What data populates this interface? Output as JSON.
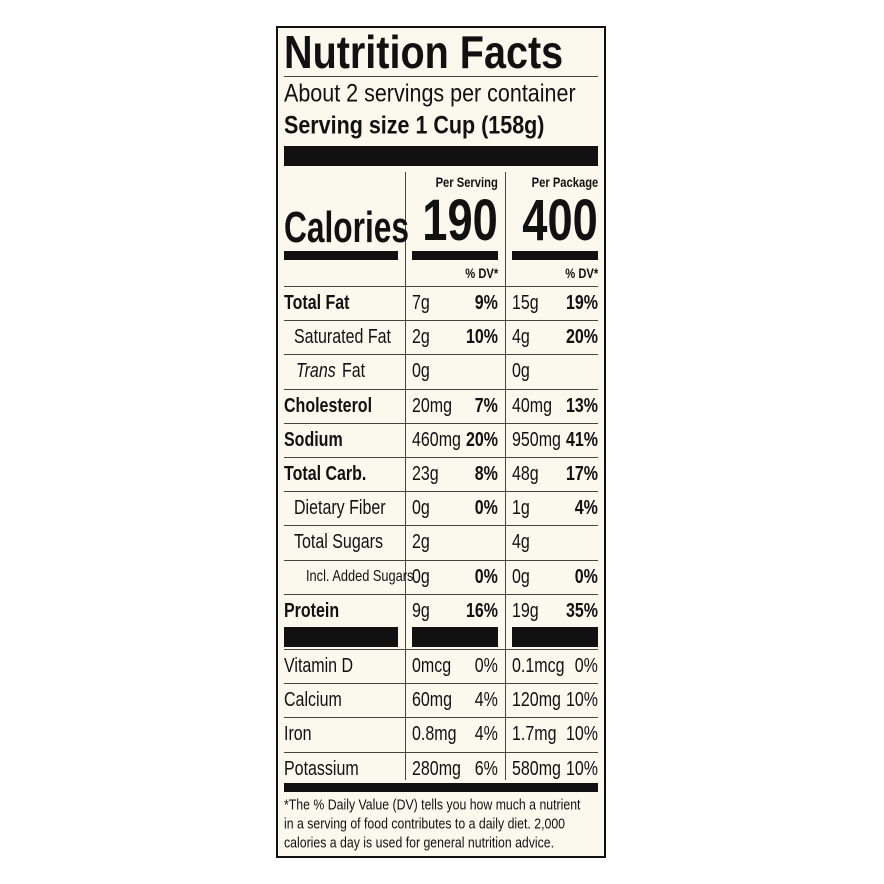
{
  "title": "Nutrition Facts",
  "servings": "About 2 servings per container",
  "serving_size": "Serving size 1 Cup (158g)",
  "columns": [
    "Per Serving",
    "Per Package"
  ],
  "calories": {
    "label": "Calories",
    "per_serving": "190",
    "per_package": "400"
  },
  "dv_header": [
    "% DV*",
    "% DV*"
  ],
  "rows": [
    {
      "name": "Total Fat",
      "serving_amount": "7g",
      "serving_dv": "9%",
      "package_amount": "15g",
      "package_dv": "19%"
    },
    {
      "name": "Saturated Fat",
      "serving_amount": "2g",
      "serving_dv": "10%",
      "package_amount": "4g",
      "package_dv": "20%"
    },
    {
      "name_prefix": "Trans",
      "name": "Fat",
      "serving_amount": "0g",
      "package_amount": "0g"
    },
    {
      "name": "Cholesterol",
      "serving_amount": "20mg",
      "serving_dv": "7%",
      "package_amount": "40mg",
      "package_dv": "13%"
    },
    {
      "name": "Sodium",
      "serving_amount": "460mg",
      "serving_dv": "20%",
      "package_amount": "950mg",
      "package_dv": "41%"
    },
    {
      "name": "Total Carb.",
      "serving_amount": "23g",
      "serving_dv": "8%",
      "package_amount": "48g",
      "package_dv": "17%"
    },
    {
      "name": "Dietary Fiber",
      "serving_amount": "0g",
      "serving_dv": "0%",
      "package_amount": "1g",
      "package_dv": "4%"
    },
    {
      "name": "Total Sugars",
      "serving_amount": "2g",
      "package_amount": "4g"
    },
    {
      "name": "Incl. Added Sugars",
      "serving_amount": "0g",
      "serving_dv": "0%",
      "package_amount": "0g",
      "package_dv": "0%"
    },
    {
      "name": "Protein",
      "serving_amount": "9g",
      "serving_dv": "16%",
      "package_amount": "19g",
      "package_dv": "35%"
    }
  ],
  "vitamins": [
    {
      "name": "Vitamin D",
      "serving_amount": "0mcg",
      "serving_dv": "0%",
      "package_amount": "0.1mcg",
      "package_dv": "0%"
    },
    {
      "name": "Calcium",
      "serving_amount": "60mg",
      "serving_dv": "4%",
      "package_amount": "120mg",
      "package_dv": "10%"
    },
    {
      "name": "Iron",
      "serving_amount": "0.8mg",
      "serving_dv": "4%",
      "package_amount": "1.7mg",
      "package_dv": "10%"
    },
    {
      "name": "Potassium",
      "serving_amount": "280mg",
      "serving_dv": "6%",
      "package_amount": "580mg",
      "package_dv": "10%"
    }
  ],
  "footnote": [
    "*The % Daily Value (DV) tells you how much a nutrient",
    "in a serving of food contributes to a daily diet. 2,000",
    "calories a day is used for general nutrition advice."
  ]
}
